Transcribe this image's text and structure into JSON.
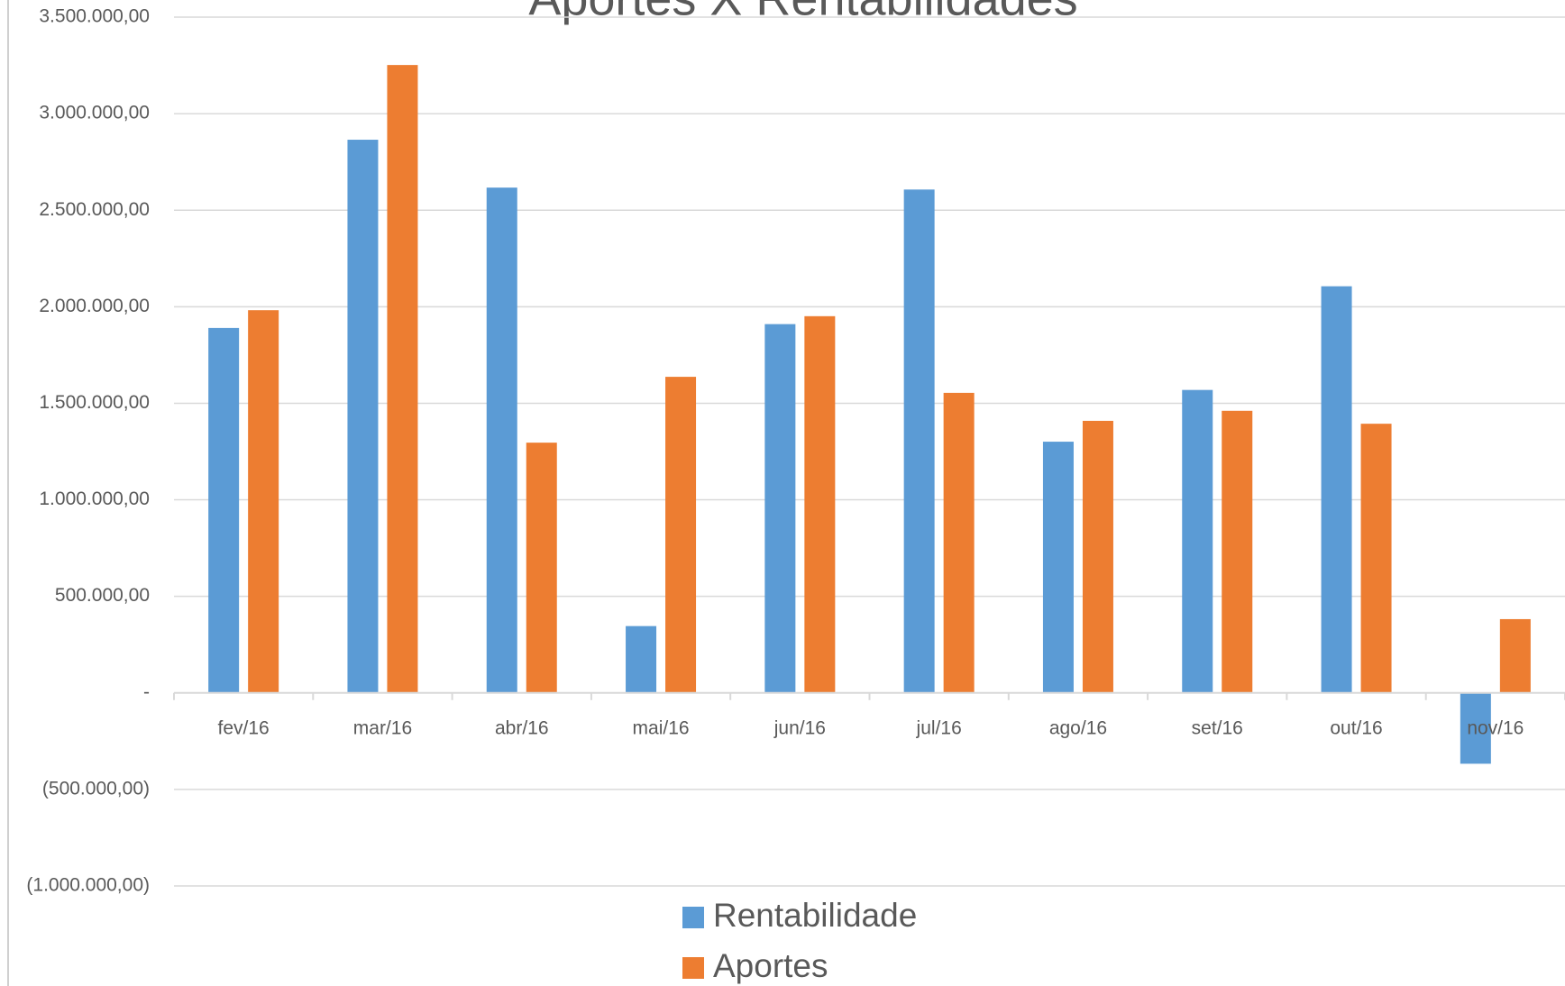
{
  "chart_data": {
    "type": "bar",
    "title": "Aportes X Rentabilidades",
    "categories": [
      "fev/16",
      "mar/16",
      "abr/16",
      "mai/16",
      "jun/16",
      "jul/16",
      "ago/16",
      "set/16",
      "out/16",
      "nov/16"
    ],
    "series": [
      {
        "name": "Rentabilidade",
        "color": "#5b9bd5",
        "values": [
          1890000,
          2865000,
          2617000,
          346000,
          1910000,
          2607000,
          1301000,
          1569000,
          2106000,
          -367000
        ]
      },
      {
        "name": "Aportes",
        "color": "#ed7d31",
        "values": [
          1982000,
          3252000,
          1296000,
          1637000,
          1951000,
          1554000,
          1409000,
          1461000,
          1394000,
          382000
        ]
      }
    ],
    "ylim": [
      -1000000,
      3500000
    ],
    "yticks": [
      {
        "value": -1000000,
        "label": "(1.000.000,00)"
      },
      {
        "value": -500000,
        "label": "(500.000,00)"
      },
      {
        "value": 0,
        "label": "-"
      },
      {
        "value": 500000,
        "label": "500.000,00"
      },
      {
        "value": 1000000,
        "label": "1.000.000,00"
      },
      {
        "value": 1500000,
        "label": "1.500.000,00"
      },
      {
        "value": 2000000,
        "label": "2.000.000,00"
      },
      {
        "value": 2500000,
        "label": "2.500.000,00"
      },
      {
        "value": 3000000,
        "label": "3.000.000,00"
      },
      {
        "value": 3500000,
        "label": "3.500.000,00"
      }
    ],
    "grid": true,
    "legend": "bottom"
  }
}
